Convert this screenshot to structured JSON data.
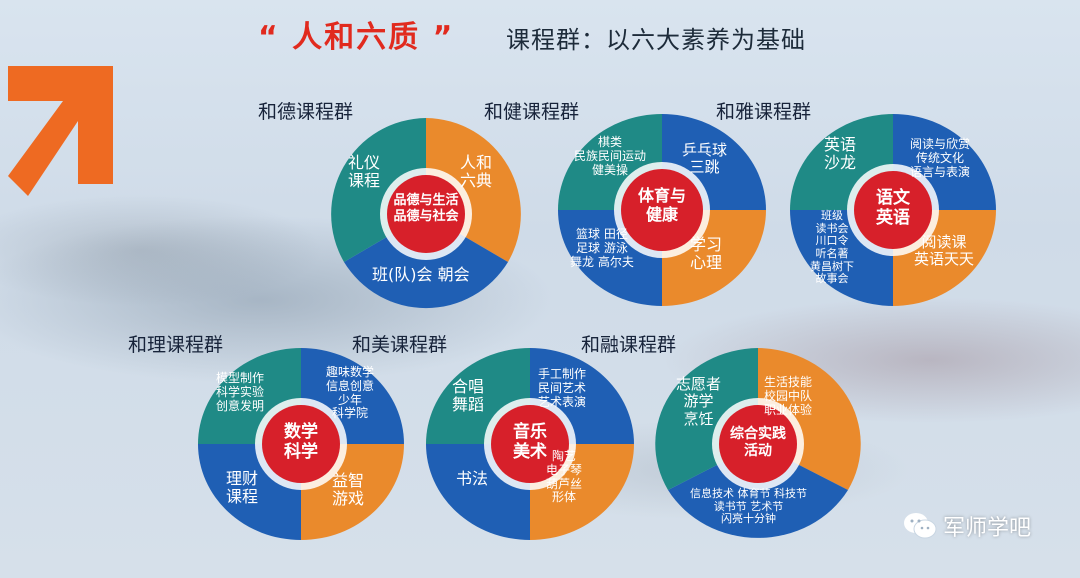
{
  "header": {
    "title": "“ 人和六质 ”",
    "subtitle": "课程群：以六大素养为基础"
  },
  "colors": {
    "teal": "#1f8a86",
    "blue": "#1f5fb4",
    "orange": "#ea8a2c",
    "red": "#d7202a"
  },
  "groups": [
    {
      "label": "和德课程群",
      "center": "品德与生活\n品德与社会",
      "segments": [
        "礼仪\n课程",
        "人和\n六典",
        "班(队)会  朝会"
      ]
    },
    {
      "label": "和健课程群",
      "center": "体育与\n健康",
      "segments": [
        "棋类\n民族民间运动\n健美操",
        "乒乓球\n三跳",
        "学习\n心理",
        "篮球 田径\n足球 游泳\n舞龙 高尔夫"
      ]
    },
    {
      "label": "和雅课程群",
      "center": "语文\n英语",
      "segments": [
        "英语\n沙龙",
        "阅读与欣赏\n传统文化\n语言与表演",
        "阅读课\n英语天天",
        "班级\n读书会\n川口令\n听名著\n黄昌树下\n故事会"
      ]
    },
    {
      "label": "和理课程群",
      "center": "数学\n科学",
      "segments": [
        "模型制作\n科学实验\n创意发明",
        "趣味数学\n信息创意\n少年\n科学院",
        "益智\n游戏",
        "理财\n课程"
      ]
    },
    {
      "label": "和美课程群",
      "center": "音乐\n美术",
      "segments": [
        "合唱\n舞蹈",
        "手工制作\n民间艺术\n艺术表演",
        "陶艺\n电子琴\n葫芦丝\n形体",
        "书法"
      ]
    },
    {
      "label": "和融课程群",
      "center": "综合实践\n活动",
      "segments": [
        "志愿者\n游学\n烹饪",
        "生活技能\n校园中队\n职业体验",
        "信息技术 体育节 科技节\n读书节 艺术节\n闪亮十分钟"
      ]
    }
  ],
  "watermark": {
    "label": "军师学吧",
    "icon": "wechat-icon"
  }
}
